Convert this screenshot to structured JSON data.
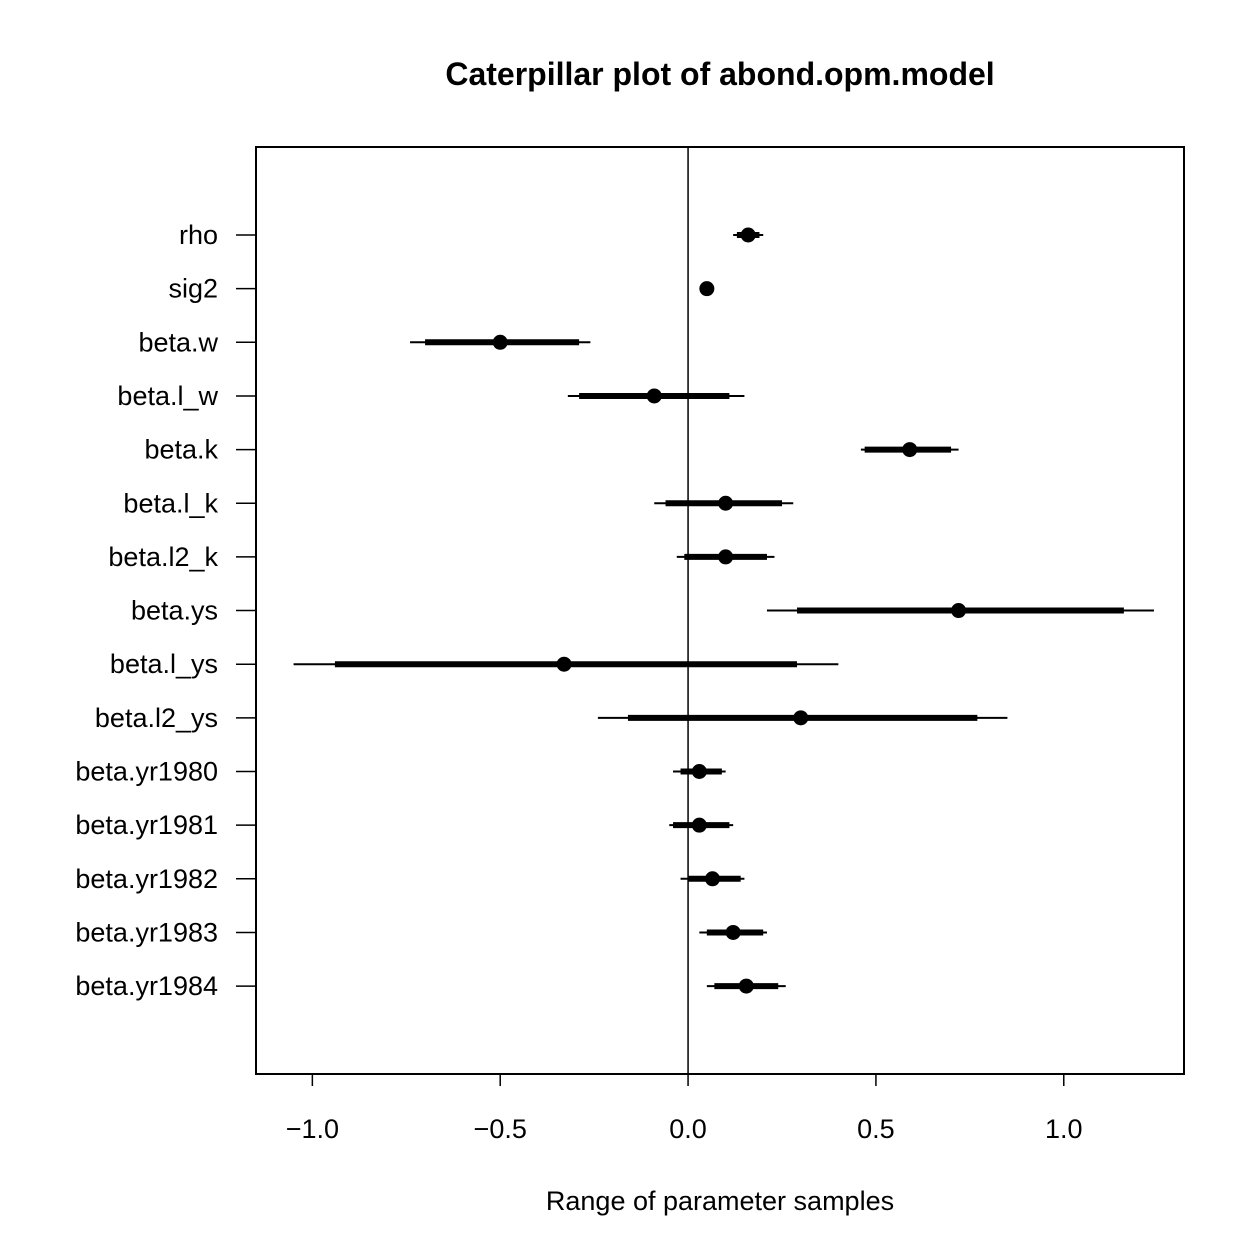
{
  "chart_data": {
    "type": "caterpillar",
    "title": "Caterpillar plot of abond.opm.model",
    "xlabel": "Range of parameter samples",
    "ylabel": "",
    "xlim": [
      -1.15,
      1.32
    ],
    "xticks": [
      -1.0,
      -0.5,
      0.0,
      0.5,
      1.0
    ],
    "xtick_labels": [
      "−1.0",
      "−0.5",
      "0.0",
      "0.5",
      "1.0"
    ],
    "reference_line": 0.0,
    "grid": false,
    "parameters": [
      {
        "name": "rho",
        "median": 0.16,
        "inner": [
          0.13,
          0.19
        ],
        "outer": [
          0.12,
          0.2
        ]
      },
      {
        "name": "sig2",
        "median": 0.05,
        "inner": [
          0.045,
          0.055
        ],
        "outer": [
          0.04,
          0.06
        ]
      },
      {
        "name": "beta.w",
        "median": -0.5,
        "inner": [
          -0.7,
          -0.29
        ],
        "outer": [
          -0.74,
          -0.26
        ]
      },
      {
        "name": "beta.l_w",
        "median": -0.09,
        "inner": [
          -0.29,
          0.11
        ],
        "outer": [
          -0.32,
          0.15
        ]
      },
      {
        "name": "beta.k",
        "median": 0.59,
        "inner": [
          0.47,
          0.7
        ],
        "outer": [
          0.46,
          0.72
        ]
      },
      {
        "name": "beta.l_k",
        "median": 0.1,
        "inner": [
          -0.06,
          0.25
        ],
        "outer": [
          -0.09,
          0.28
        ]
      },
      {
        "name": "beta.l2_k",
        "median": 0.1,
        "inner": [
          -0.01,
          0.21
        ],
        "outer": [
          -0.03,
          0.23
        ]
      },
      {
        "name": "beta.ys",
        "median": 0.72,
        "inner": [
          0.29,
          1.16
        ],
        "outer": [
          0.21,
          1.24
        ]
      },
      {
        "name": "beta.l_ys",
        "median": -0.33,
        "inner": [
          -0.94,
          0.29
        ],
        "outer": [
          -1.05,
          0.4
        ]
      },
      {
        "name": "beta.l2_ys",
        "median": 0.3,
        "inner": [
          -0.16,
          0.77
        ],
        "outer": [
          -0.24,
          0.85
        ]
      },
      {
        "name": "beta.yr1980",
        "median": 0.03,
        "inner": [
          -0.02,
          0.09
        ],
        "outer": [
          -0.04,
          0.1
        ]
      },
      {
        "name": "beta.yr1981",
        "median": 0.03,
        "inner": [
          -0.04,
          0.11
        ],
        "outer": [
          -0.05,
          0.12
        ]
      },
      {
        "name": "beta.yr1982",
        "median": 0.065,
        "inner": [
          0.0,
          0.14
        ],
        "outer": [
          -0.02,
          0.15
        ]
      },
      {
        "name": "beta.yr1983",
        "median": 0.12,
        "inner": [
          0.05,
          0.2
        ],
        "outer": [
          0.03,
          0.21
        ]
      },
      {
        "name": "beta.yr1984",
        "median": 0.155,
        "inner": [
          0.07,
          0.24
        ],
        "outer": [
          0.05,
          0.26
        ]
      }
    ]
  }
}
